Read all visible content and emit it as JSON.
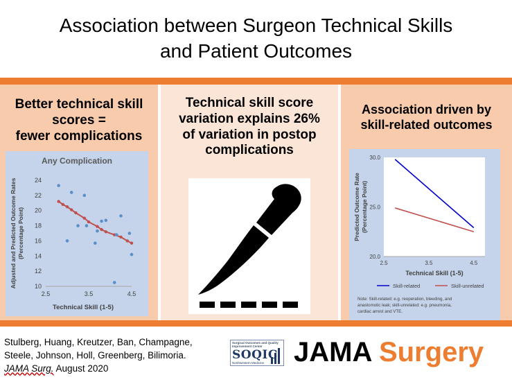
{
  "title": {
    "line1": "Association between Surgeon Technical Skills",
    "line2": "and Patient Outcomes"
  },
  "panels": {
    "left": {
      "heading": [
        "Better technical skill",
        "scores =",
        "fewer complications"
      ]
    },
    "middle": {
      "heading": [
        "Technical skill score",
        "variation explains 26%",
        "of variation in postop",
        "complications"
      ],
      "icon": "scalpel-icon"
    },
    "right": {
      "heading": [
        "Association driven by",
        "skill-related outcomes"
      ]
    }
  },
  "chart_data": [
    {
      "type": "scatter",
      "title": "Any Complication",
      "xlabel": "Technical Skill (1-5)",
      "ylabel": "Adjusted and Predicted Outcome Rates (Percentage Point)",
      "xlim": [
        2.5,
        4.5
      ],
      "ylim": [
        10,
        24
      ],
      "xticks": [
        "2.5",
        "3.5",
        "4.5"
      ],
      "yticks": [
        "10",
        "12",
        "14",
        "16",
        "18",
        "20",
        "22",
        "24"
      ],
      "grid": false,
      "legend": "none",
      "series": [
        {
          "type": "scatter",
          "color": "#5b8fc9",
          "points": [
            [
              2.8,
              23.3
            ],
            [
              3.0,
              16.0
            ],
            [
              3.1,
              22.4
            ],
            [
              3.25,
              18.0
            ],
            [
              3.4,
              22.0
            ],
            [
              3.45,
              18.0
            ],
            [
              3.65,
              15.7
            ],
            [
              3.7,
              17.3
            ],
            [
              3.8,
              18.6
            ],
            [
              3.9,
              18.7
            ],
            [
              4.1,
              10.5
            ],
            [
              4.15,
              16.8
            ],
            [
              4.25,
              19.3
            ],
            [
              4.45,
              17.0
            ],
            [
              4.5,
              14.2
            ]
          ]
        },
        {
          "type": "line",
          "color": "#c0504d",
          "points": [
            [
              2.8,
              21.2
            ],
            [
              2.9,
              20.8
            ],
            [
              3.0,
              20.5
            ],
            [
              3.1,
              20.1
            ],
            [
              3.2,
              19.7
            ],
            [
              3.4,
              19.0
            ],
            [
              3.5,
              18.5
            ],
            [
              3.7,
              17.9
            ],
            [
              3.8,
              17.5
            ],
            [
              3.9,
              17.2
            ],
            [
              4.1,
              16.8
            ],
            [
              4.25,
              16.5
            ],
            [
              4.4,
              16.0
            ],
            [
              4.5,
              15.7
            ]
          ]
        }
      ]
    },
    {
      "type": "line",
      "title": "",
      "xlabel": "Technical Skill (1-5)",
      "ylabel": "Predicted Outcome Rate (Percentage Point)",
      "xlim": [
        2.5,
        4.75
      ],
      "ylim": [
        20,
        30
      ],
      "xticks": [
        "2.5",
        "3.5",
        "4.5"
      ],
      "yticks": [
        "20.0",
        "25.0",
        "30.0"
      ],
      "grid": false,
      "legend": "bottom",
      "series": [
        {
          "name": "Skill-related",
          "color": "#0000cc",
          "x": [
            2.75,
            4.5
          ],
          "y": [
            29.8,
            22.9
          ]
        },
        {
          "name": "Skill-unrelated",
          "color": "#c0504d",
          "x": [
            2.75,
            4.5
          ],
          "y": [
            24.9,
            22.5
          ]
        }
      ],
      "note": "Note: Skill-related: e.g. reoperation, bleeding, and anastomotic leak; skill-unrelated: e.g. pneumonia, cardiac arrest and VTE."
    }
  ],
  "footer": {
    "authors_line1": "Stulberg, Huang, Kreutzer, Ban, Champagne,",
    "authors_line2": "Steele, Johnson, Holl, Greenberg, Bilimoria.",
    "journal_abbrev": "JAMA Surg.",
    "date": "August 2020",
    "soqic": {
      "top_text": "Surgical Outcomes and Quality Improvement Center",
      "logo": "SOQIC",
      "bottom_text": "Northwestern Medicine"
    },
    "brand_part1": "JAMA",
    "brand_part2": "Surgery"
  }
}
